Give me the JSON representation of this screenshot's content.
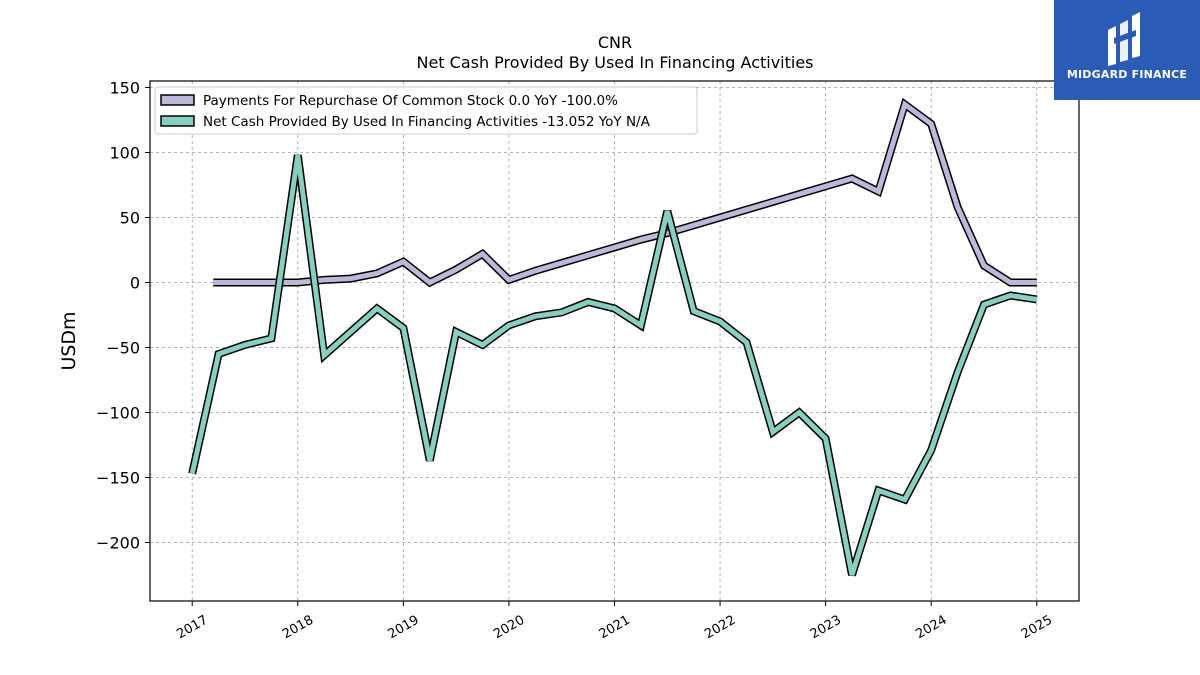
{
  "chart_data": {
    "type": "line",
    "title": "CNR",
    "subtitle": "Net Cash Provided By Used In Financing Activities",
    "ylabel": "USDm",
    "xlabel": "",
    "ylim": [
      -245,
      155
    ],
    "xlim": [
      2016.6,
      2025.4
    ],
    "yticks": [
      150,
      100,
      50,
      0,
      -50,
      -100,
      -150,
      -200
    ],
    "ytick_labels": [
      "150",
      "100",
      "50",
      "0",
      "−50",
      "−100",
      "−150",
      "−200"
    ],
    "xticks": [
      2017,
      2018,
      2019,
      2020,
      2021,
      2022,
      2023,
      2024,
      2025
    ],
    "xtick_labels": [
      "2017",
      "2018",
      "2019",
      "2020",
      "2021",
      "2022",
      "2023",
      "2024",
      "2025"
    ],
    "grid": true,
    "legend_position": "top-left",
    "series": [
      {
        "name": "Payments For Repurchase Of Common Stock",
        "legend_label": "Payments For Repurchase Of Common Stock  0.0 YoY -100.0%",
        "color": "#bcb8d8",
        "x": [
          2017.2,
          2017.5,
          2017.75,
          2018.0,
          2018.25,
          2018.5,
          2018.75,
          2019.0,
          2019.25,
          2019.5,
          2019.75,
          2020.0,
          2020.25,
          2020.5,
          2020.75,
          2021.0,
          2021.25,
          2021.5,
          2021.75,
          2022.0,
          2022.25,
          2022.5,
          2022.75,
          2023.0,
          2023.25,
          2023.5,
          2023.75,
          2024.0,
          2024.25,
          2024.5,
          2024.75,
          2025.0
        ],
        "y": [
          0,
          0,
          0,
          0,
          2,
          3,
          7,
          16,
          0,
          10,
          22,
          2,
          9,
          15,
          21,
          27,
          33,
          38,
          44,
          50,
          56,
          62,
          68,
          74,
          80,
          70,
          137,
          122,
          58,
          13,
          0,
          0
        ]
      },
      {
        "name": "Net Cash Provided By Used In Financing Activities",
        "legend_label": "Net Cash Provided By Used In Financing Activities  -13.052 YoY N/A",
        "color": "#88cfc0",
        "x": [
          2017.0,
          2017.25,
          2017.5,
          2017.75,
          2018.0,
          2018.25,
          2018.5,
          2018.75,
          2019.0,
          2019.25,
          2019.5,
          2019.75,
          2020.0,
          2020.25,
          2020.5,
          2020.75,
          2021.0,
          2021.25,
          2021.5,
          2021.75,
          2022.0,
          2022.25,
          2022.5,
          2022.75,
          2023.0,
          2023.25,
          2023.5,
          2023.75,
          2024.0,
          2024.25,
          2024.5,
          2024.75,
          2025.0
        ],
        "y": [
          -147,
          -55,
          -48,
          -43,
          98,
          -56,
          -38,
          -20,
          -35,
          -137,
          -38,
          -48,
          -33,
          -26,
          -23,
          -15,
          -20,
          -33,
          55,
          -22,
          -30,
          -46,
          -115,
          -100,
          -120,
          -225,
          -160,
          -167,
          -129,
          -69,
          -17,
          -10,
          -13
        ]
      }
    ]
  },
  "logo": {
    "text": "MIDGARD FINANCE"
  }
}
